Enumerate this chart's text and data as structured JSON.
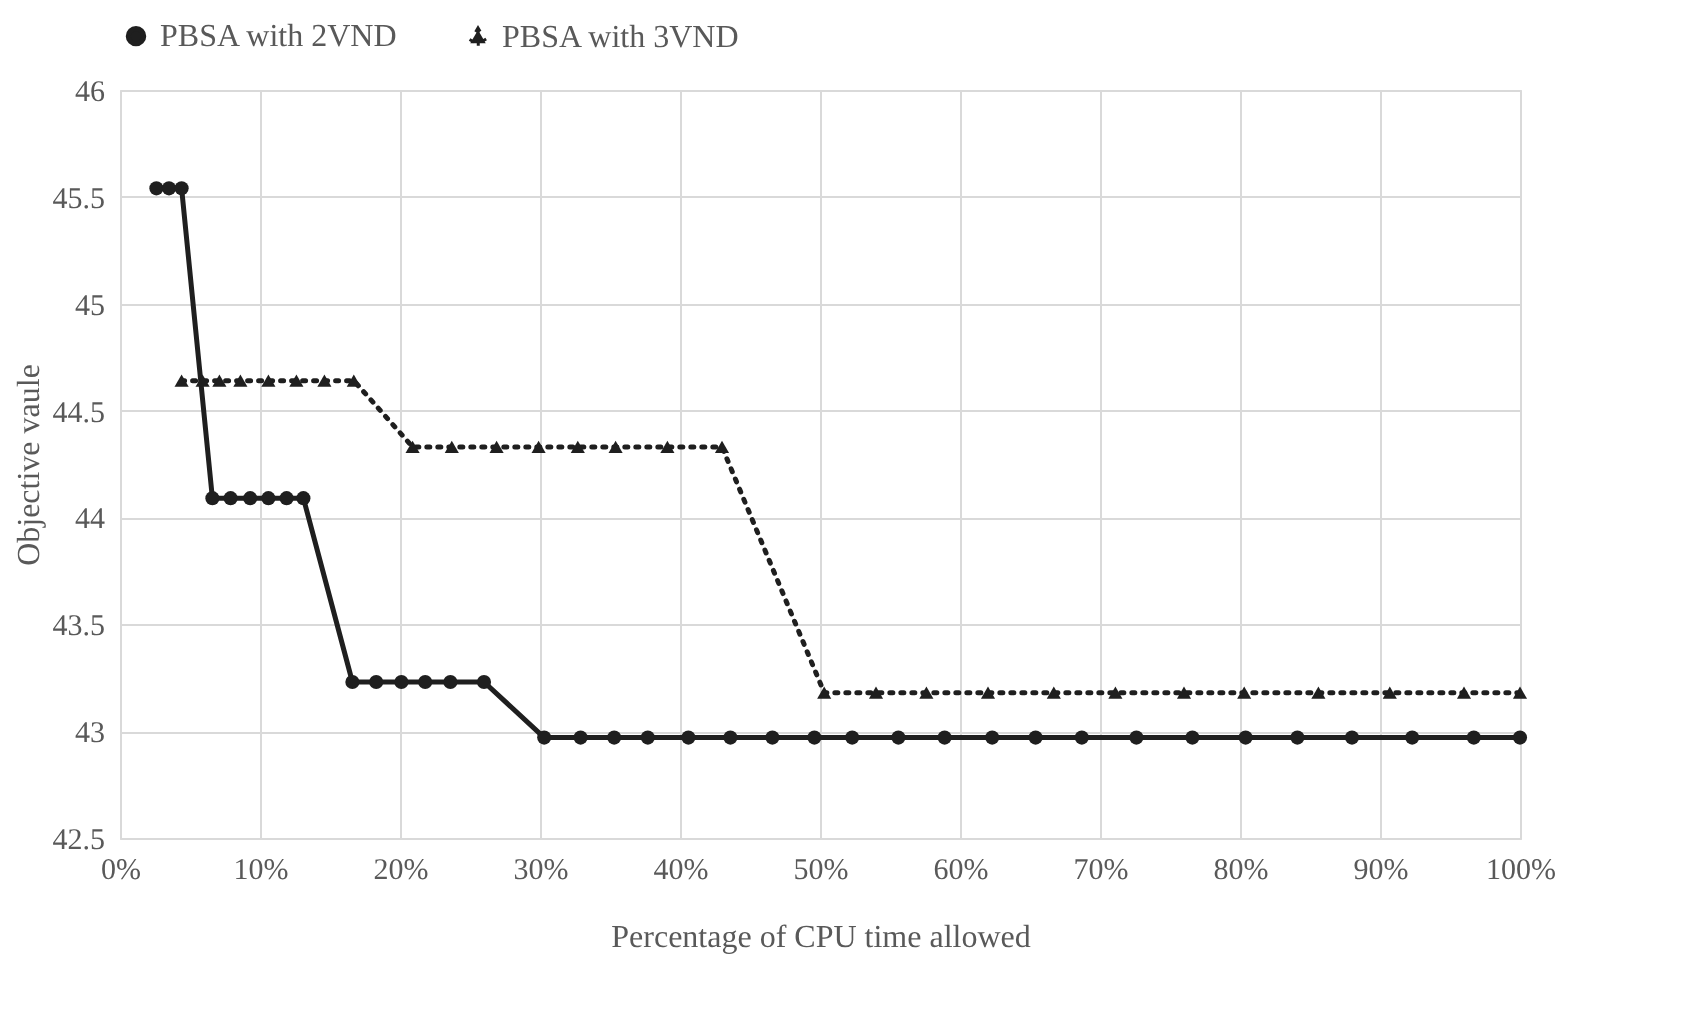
{
  "chart_data": {
    "type": "line",
    "xlabel": "Percentage of CPU time allowed",
    "ylabel": "Objective vaule",
    "xlim": [
      0,
      100
    ],
    "xticks": [
      {
        "value": 0,
        "label": "0%"
      },
      {
        "value": 10,
        "label": "10%"
      },
      {
        "value": 20,
        "label": "20%"
      },
      {
        "value": 30,
        "label": "30%"
      },
      {
        "value": 40,
        "label": "40%"
      },
      {
        "value": 50,
        "label": "50%"
      },
      {
        "value": 60,
        "label": "60%"
      },
      {
        "value": 70,
        "label": "70%"
      },
      {
        "value": 80,
        "label": "80%"
      },
      {
        "value": 90,
        "label": "90%"
      },
      {
        "value": 100,
        "label": "100%"
      }
    ],
    "ylim": [
      42.5,
      46
    ],
    "yticks": [
      42.5,
      43,
      43.5,
      44,
      44.5,
      45,
      45.5,
      46
    ],
    "grid": true,
    "legend": "top",
    "series": [
      {
        "name": "PBSA with 2VND",
        "color": "#1f1f1f",
        "marker": "circle",
        "line_style": "solid",
        "x": [
          2.6,
          3.5,
          4.4,
          6.6,
          7.9,
          9.3,
          10.6,
          11.9,
          13.1,
          16.6,
          18.3,
          20.1,
          21.8,
          23.6,
          26.0,
          30.3,
          32.9,
          35.3,
          37.7,
          40.6,
          43.6,
          46.6,
          49.6,
          52.3,
          55.6,
          58.9,
          62.3,
          65.4,
          68.7,
          72.6,
          76.6,
          80.4,
          84.1,
          88.0,
          92.3,
          96.7,
          100
        ],
        "values": [
          45.54,
          45.54,
          45.54,
          44.09,
          44.09,
          44.09,
          44.09,
          44.09,
          44.09,
          43.23,
          43.23,
          43.23,
          43.23,
          43.23,
          43.23,
          42.97,
          42.97,
          42.97,
          42.97,
          42.97,
          42.97,
          42.97,
          42.97,
          42.97,
          42.97,
          42.97,
          42.97,
          42.97,
          42.97,
          42.97,
          42.97,
          42.97,
          42.97,
          42.97,
          42.97,
          42.97,
          42.97
        ]
      },
      {
        "name": "PBSA with 3VND",
        "color": "#1f1f1f",
        "marker": "triangle",
        "line_style": "dotted",
        "x": [
          4.4,
          5.9,
          7.1,
          8.6,
          10.6,
          12.6,
          14.6,
          16.7,
          20.9,
          23.7,
          26.9,
          29.9,
          32.7,
          35.4,
          39.1,
          43.0,
          50.3,
          54.0,
          57.6,
          62.0,
          66.7,
          71.1,
          76.0,
          80.3,
          85.6,
          90.7,
          96.0,
          100
        ],
        "values": [
          44.64,
          44.64,
          44.64,
          44.64,
          44.64,
          44.64,
          44.64,
          44.64,
          44.33,
          44.33,
          44.33,
          44.33,
          44.33,
          44.33,
          44.33,
          44.33,
          43.18,
          43.18,
          43.18,
          43.18,
          43.18,
          43.18,
          43.18,
          43.18,
          43.18,
          43.18,
          43.18,
          43.18
        ]
      }
    ]
  }
}
